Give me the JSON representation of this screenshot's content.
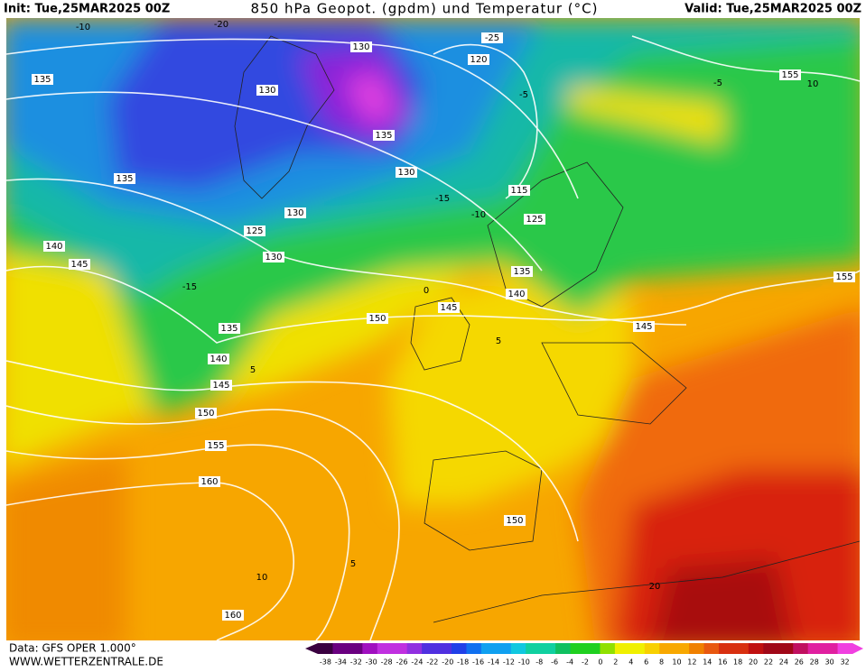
{
  "header": {
    "init": "Init: Tue,25MAR2025 00Z",
    "title": "850 hPa Geopot. (gpdm) und Temperatur (°C)",
    "valid": "Valid: Tue,25MAR2025 00Z"
  },
  "footer": {
    "data": "Data: GFS OPER 1.000°",
    "site": "WWW.WETTERZENTRALE.DE"
  },
  "geopotential_labels": [
    130,
    135,
    130,
    120,
    135,
    130,
    135,
    115,
    125,
    130,
    125,
    130,
    140,
    145,
    135,
    140,
    150,
    145,
    155,
    155,
    145,
    135,
    140,
    145,
    150,
    155,
    160,
    150,
    160
  ],
  "temperature_labels": [
    -10,
    -20,
    -25,
    -5,
    -5,
    10,
    -15,
    -10,
    -15,
    0,
    5,
    5,
    5,
    10,
    20
  ],
  "colorbar": {
    "labels": [
      -38,
      -34,
      -32,
      -30,
      -28,
      -26,
      -24,
      -22,
      -20,
      -18,
      -16,
      -14,
      -12,
      -10,
      -8,
      -6,
      -4,
      -2,
      0,
      2,
      4,
      6,
      8,
      10,
      12,
      14,
      16,
      18,
      20,
      22,
      24,
      26,
      28,
      30,
      32
    ]
  }
}
